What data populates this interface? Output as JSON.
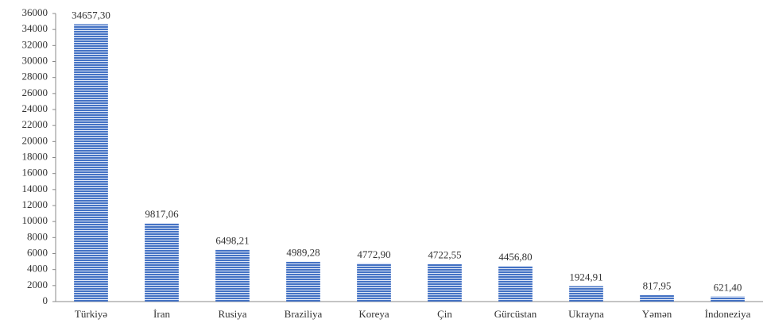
{
  "chart_data": {
    "type": "bar",
    "categories": [
      "Türkiyə",
      "İran",
      "Rusiya",
      "Braziliya",
      "Koreya",
      "Çin",
      "Gürcüstan",
      "Ukrayna",
      "Yəmən",
      "İndoneziya"
    ],
    "values": [
      34657.3,
      9817.06,
      6498.21,
      4989.28,
      4772.9,
      4722.55,
      4456.8,
      1924.91,
      817.95,
      621.4
    ],
    "value_labels": [
      "34657,30",
      "9817,06",
      "6498,21",
      "4989,28",
      "4772,90",
      "4722,55",
      "4456,80",
      "1924,91",
      "817,95",
      "621,40"
    ],
    "color": "#4472c4",
    "ylim": [
      0,
      36000
    ],
    "yticks": [
      0,
      2000,
      4000,
      6000,
      8000,
      10000,
      12000,
      14000,
      16000,
      18000,
      20000,
      22000,
      24000,
      26000,
      28000,
      30000,
      32000,
      34000,
      36000
    ],
    "grid": false
  }
}
